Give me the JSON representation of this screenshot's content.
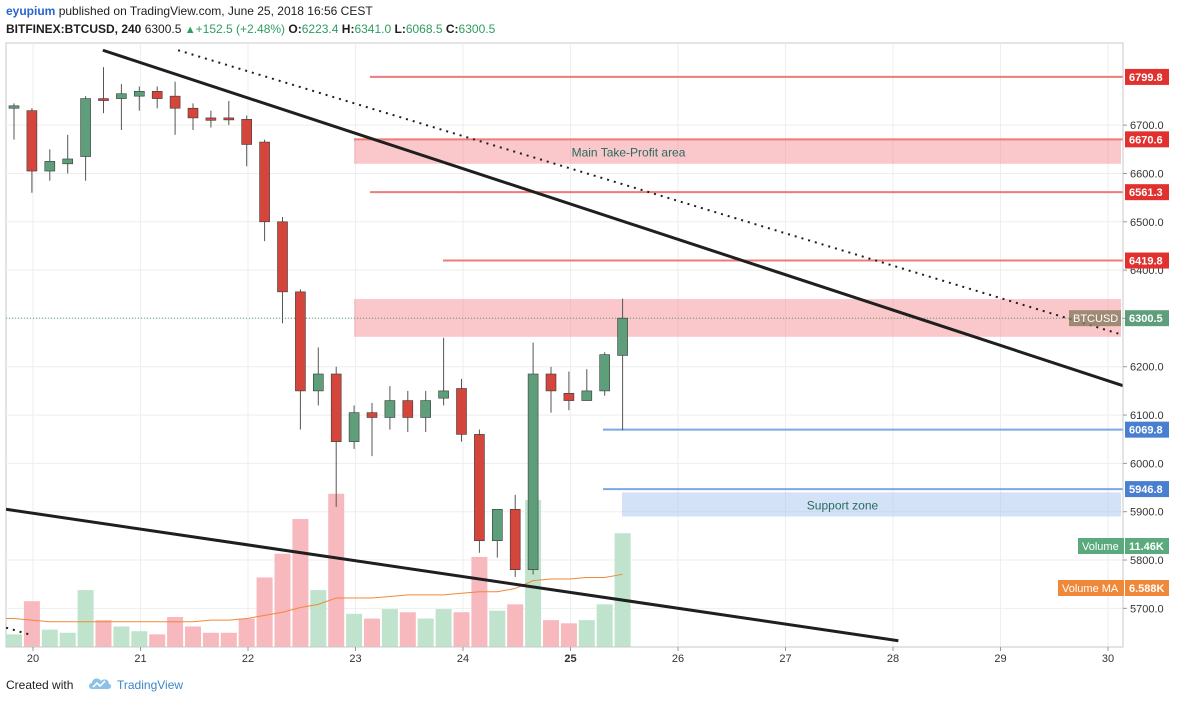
{
  "header": {
    "author": "eyupium",
    "published": "published on TradingView.com, June 25, 2018 16:56 CEST",
    "symbol": "BITFINEX:BTCUSD, 240",
    "last": "6300.5",
    "change": "+152.5 (+2.48%)",
    "o_label": "O:",
    "o_value": "6223.4",
    "h_label": "H:",
    "h_value": "6341.0",
    "l_label": "L:",
    "l_value": "6068.5",
    "c_label": "C:",
    "c_value": "6300.5",
    "up_icon": "triangle-up-icon"
  },
  "footer": {
    "created": "Created with",
    "brand": "TradingView",
    "logo_icon": "tradingview-cloud-icon"
  },
  "chart_data": {
    "type": "candlestick",
    "symbol": "BTCUSD",
    "ylim": [
      5620,
      6870
    ],
    "y_ticks": [
      "5700.0",
      "5800.0",
      "5900.0",
      "6000.0",
      "6100.0",
      "6200.0",
      "6300.0",
      "6400.0",
      "6500.0",
      "6600.0",
      "6700.0"
    ],
    "x_ticks": [
      "20",
      "21",
      "22",
      "23",
      "24",
      "25",
      "26",
      "27",
      "28",
      "29",
      "30"
    ],
    "bold_tick": "25",
    "colors": {
      "up": "#5e9e7a",
      "down": "#d4463b",
      "up_vol": "#bfe3cd",
      "down_vol": "#f7b9bd",
      "ma": "#f0883a"
    },
    "candles": [
      {
        "o": 6735,
        "h": 6745,
        "l": 6670,
        "c": 6740
      },
      {
        "o": 6730,
        "h": 6735,
        "l": 6560,
        "c": 6605
      },
      {
        "o": 6605,
        "h": 6650,
        "l": 6585,
        "c": 6625
      },
      {
        "o": 6620,
        "h": 6680,
        "l": 6600,
        "c": 6630
      },
      {
        "o": 6635,
        "h": 6760,
        "l": 6585,
        "c": 6755
      },
      {
        "o": 6755,
        "h": 6820,
        "l": 6725,
        "c": 6752
      },
      {
        "o": 6755,
        "h": 6785,
        "l": 6690,
        "c": 6765
      },
      {
        "o": 6760,
        "h": 6780,
        "l": 6730,
        "c": 6770
      },
      {
        "o": 6770,
        "h": 6780,
        "l": 6735,
        "c": 6755
      },
      {
        "o": 6760,
        "h": 6790,
        "l": 6680,
        "c": 6735
      },
      {
        "o": 6735,
        "h": 6745,
        "l": 6690,
        "c": 6715
      },
      {
        "o": 6715,
        "h": 6730,
        "l": 6695,
        "c": 6710
      },
      {
        "o": 6715,
        "h": 6750,
        "l": 6700,
        "c": 6712
      },
      {
        "o": 6712,
        "h": 6720,
        "l": 6615,
        "c": 6660
      },
      {
        "o": 6665,
        "h": 6670,
        "l": 6460,
        "c": 6500
      },
      {
        "o": 6500,
        "h": 6510,
        "l": 6290,
        "c": 6355
      },
      {
        "o": 6355,
        "h": 6360,
        "l": 6070,
        "c": 6150
      },
      {
        "o": 6150,
        "h": 6240,
        "l": 6120,
        "c": 6185
      },
      {
        "o": 6185,
        "h": 6200,
        "l": 5910,
        "c": 6045
      },
      {
        "o": 6045,
        "h": 6120,
        "l": 6030,
        "c": 6105
      },
      {
        "o": 6105,
        "h": 6125,
        "l": 6015,
        "c": 6095
      },
      {
        "o": 6095,
        "h": 6160,
        "l": 6070,
        "c": 6130
      },
      {
        "o": 6130,
        "h": 6150,
        "l": 6065,
        "c": 6095
      },
      {
        "o": 6095,
        "h": 6150,
        "l": 6065,
        "c": 6130
      },
      {
        "o": 6135,
        "h": 6260,
        "l": 6120,
        "c": 6150
      },
      {
        "o": 6155,
        "h": 6175,
        "l": 6045,
        "c": 6060
      },
      {
        "o": 6060,
        "h": 6070,
        "l": 5815,
        "c": 5840
      },
      {
        "o": 5840,
        "h": 5905,
        "l": 5805,
        "c": 5905
      },
      {
        "o": 5905,
        "h": 5935,
        "l": 5765,
        "c": 5780
      },
      {
        "o": 5780,
        "h": 6250,
        "l": 5770,
        "c": 6185
      },
      {
        "o": 6185,
        "h": 6200,
        "l": 6105,
        "c": 6150
      },
      {
        "o": 6145,
        "h": 6190,
        "l": 6110,
        "c": 6130
      },
      {
        "o": 6130,
        "h": 6195,
        "l": 6130,
        "c": 6150
      },
      {
        "o": 6150,
        "h": 6230,
        "l": 6140,
        "c": 6225
      },
      {
        "o": 6223.4,
        "h": 6341.0,
        "l": 6068.5,
        "c": 6300.5
      }
    ],
    "volume_fraction": [
      0.08,
      0.29,
      0.11,
      0.09,
      0.36,
      0.17,
      0.13,
      0.1,
      0.08,
      0.19,
      0.13,
      0.09,
      0.09,
      0.18,
      0.44,
      0.59,
      0.81,
      0.36,
      0.97,
      0.21,
      0.18,
      0.24,
      0.22,
      0.18,
      0.24,
      0.22,
      0.57,
      0.23,
      0.27,
      0.93,
      0.17,
      0.15,
      0.17,
      0.27,
      0.72
    ],
    "volume_ma_fraction": [
      0.18,
      0.17,
      0.16,
      0.16,
      0.16,
      0.16,
      0.16,
      0.16,
      0.16,
      0.16,
      0.16,
      0.17,
      0.17,
      0.18,
      0.2,
      0.22,
      0.25,
      0.27,
      0.31,
      0.31,
      0.31,
      0.32,
      0.33,
      0.33,
      0.33,
      0.34,
      0.35,
      0.35,
      0.37,
      0.42,
      0.43,
      0.43,
      0.44,
      0.44,
      0.46
    ],
    "levels": [
      {
        "value": 6799.8,
        "label": "6799.8",
        "type": "resistance"
      },
      {
        "value": 6670.6,
        "label": "6670.6",
        "type": "resistance"
      },
      {
        "value": 6561.3,
        "label": "6561.3",
        "type": "resistance"
      },
      {
        "value": 6419.8,
        "label": "6419.8",
        "type": "resistance"
      },
      {
        "value": 6069.8,
        "label": "6069.8",
        "type": "support"
      },
      {
        "value": 5946.8,
        "label": "5946.8",
        "type": "support"
      }
    ],
    "zones": [
      {
        "from": 6620,
        "to": 6670,
        "label": "Main Take-Profit area",
        "type": "resistance"
      },
      {
        "from": 6262,
        "to": 6340,
        "label": "",
        "type": "resistance"
      },
      {
        "from": 5890,
        "to": 5940,
        "label": "Support zone",
        "type": "support"
      }
    ],
    "trendlines": [
      {
        "x1": 20.65,
        "y1": 6855,
        "x2": 30.15,
        "y2": 6160,
        "style": "solid"
      },
      {
        "x1": 21.35,
        "y1": 6855,
        "x2": 30.15,
        "y2": 6265,
        "style": "dotted"
      },
      {
        "x1": 19.75,
        "y1": 5905,
        "x2": 28.05,
        "y2": 5633,
        "style": "solid"
      },
      {
        "x1": 19.75,
        "y1": 5660,
        "x2": 19.98,
        "y2": 5645,
        "style": "dotted"
      }
    ],
    "price_label": {
      "symbol": "BTCUSD",
      "value": "6300.5"
    },
    "volume_badge": {
      "label": "Volume",
      "value": "11.46K"
    },
    "volume_ma_badge": {
      "label": "Volume MA",
      "value": "6.588K"
    }
  }
}
